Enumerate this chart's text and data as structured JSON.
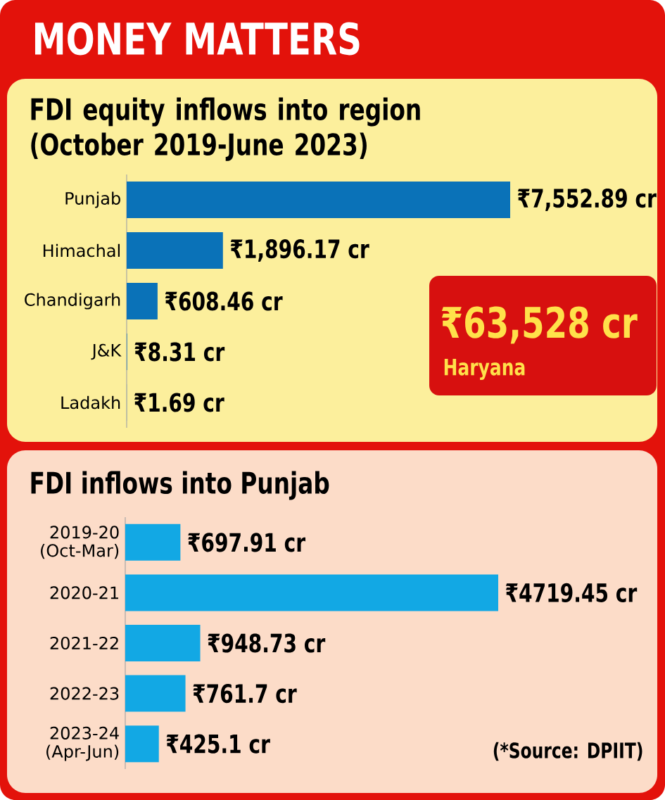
{
  "chart_data": [
    {
      "type": "bar",
      "orientation": "horizontal",
      "title": "MONEY MATTERS",
      "subtitle": "FDI equity inflows into region (October 2019-June 2023)",
      "categories": [
        "Punjab",
        "Himachal",
        "Chandigarh",
        "J&K",
        "Ladakh"
      ],
      "values": [
        7552.89,
        1896.17,
        608.46,
        8.31,
        1.69
      ],
      "value_labels": [
        "₹7,552.89 cr",
        "₹1,896.17 cr",
        "₹608.46 cr",
        "₹8.31 cr",
        "₹1.69 cr"
      ],
      "color": "#0a72b8",
      "annotations": [
        "₹63,528 cr",
        "Haryana"
      ]
    },
    {
      "type": "bar",
      "orientation": "horizontal",
      "title": "FDI inflows into Punjab",
      "categories": [
        "2019-20 (Oct-Mar)",
        "2020-21",
        "2021-22",
        "2022-23",
        "2023-24 (Apr-Jun)"
      ],
      "values": [
        697.91,
        4719.45,
        948.73,
        761.7,
        425.1
      ],
      "value_labels": [
        "₹697.91 cr",
        "₹4719.45 cr",
        "₹948.73 cr",
        "₹761.7 cr",
        "₹425.1 cr"
      ],
      "color": "#12a8e4",
      "annotations": [
        "(*Source: DPIIT)"
      ]
    }
  ]
}
